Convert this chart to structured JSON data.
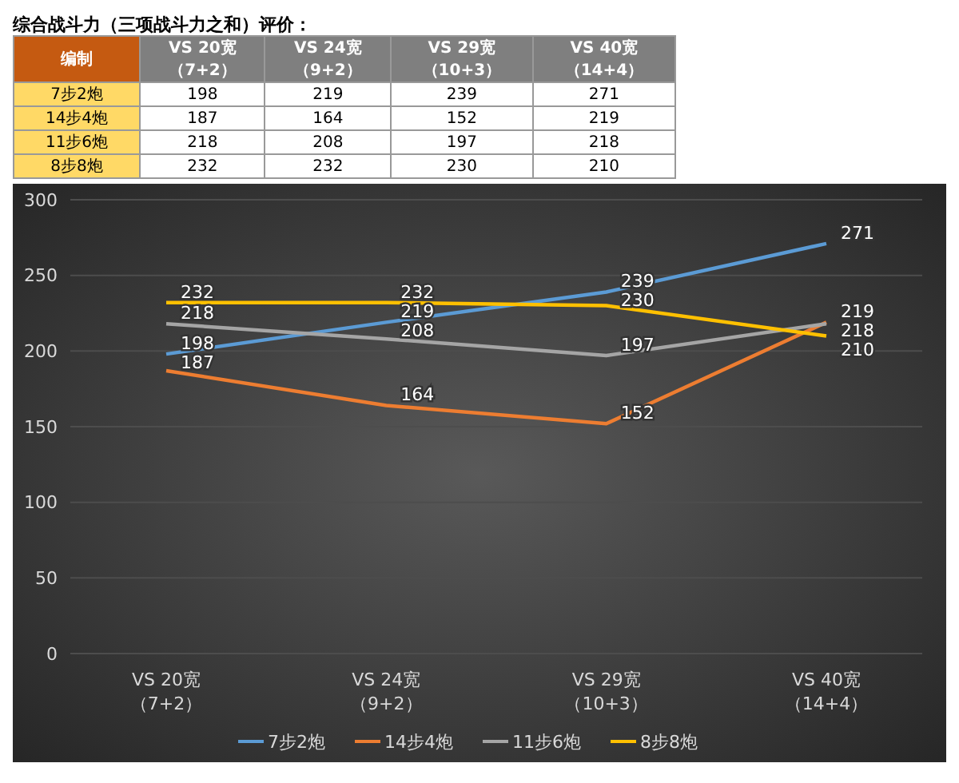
{
  "chart_data": [
    {
      "type": "heatmap",
      "title": "综合战斗力（三项战斗力之和）评价：",
      "ylabel": "编制",
      "categories": [
        "VS 20宽（7+2）",
        "VS 24宽（9+2）",
        "VS 29宽（10+3）",
        "VS 40宽（14+4）"
      ],
      "y_categories": [
        "7步2炮",
        "14步4炮",
        "11步6炮",
        "8步8炮"
      ],
      "cells": [
        [
          198,
          219,
          239,
          271
        ],
        [
          187,
          164,
          152,
          219
        ],
        [
          218,
          208,
          197,
          218
        ],
        [
          232,
          232,
          230,
          210
        ]
      ],
      "data_labels": true
    },
    {
      "type": "line",
      "categories": [
        "VS 20宽（7+2）",
        "VS 24宽（9+2）",
        "VS 29宽（10+3）",
        "VS 40宽（14+4）"
      ],
      "series": [
        {
          "name": "7步2炮",
          "color": "#5b9bd5",
          "values": [
            198,
            219,
            239,
            271
          ]
        },
        {
          "name": "14步4炮",
          "color": "#ed7d31",
          "values": [
            187,
            164,
            152,
            219
          ]
        },
        {
          "name": "11步6炮",
          "color": "#a5a5a5",
          "values": [
            218,
            208,
            197,
            218
          ]
        },
        {
          "name": "8步8炮",
          "color": "#ffc000",
          "values": [
            232,
            232,
            230,
            210
          ]
        }
      ],
      "ylim": [
        0,
        300
      ],
      "yticks": [
        0,
        50,
        100,
        150,
        200,
        250,
        300
      ],
      "grid": "y",
      "legend": "bottom",
      "data_labels": true,
      "marker": "none",
      "line_style": "solid"
    }
  ]
}
